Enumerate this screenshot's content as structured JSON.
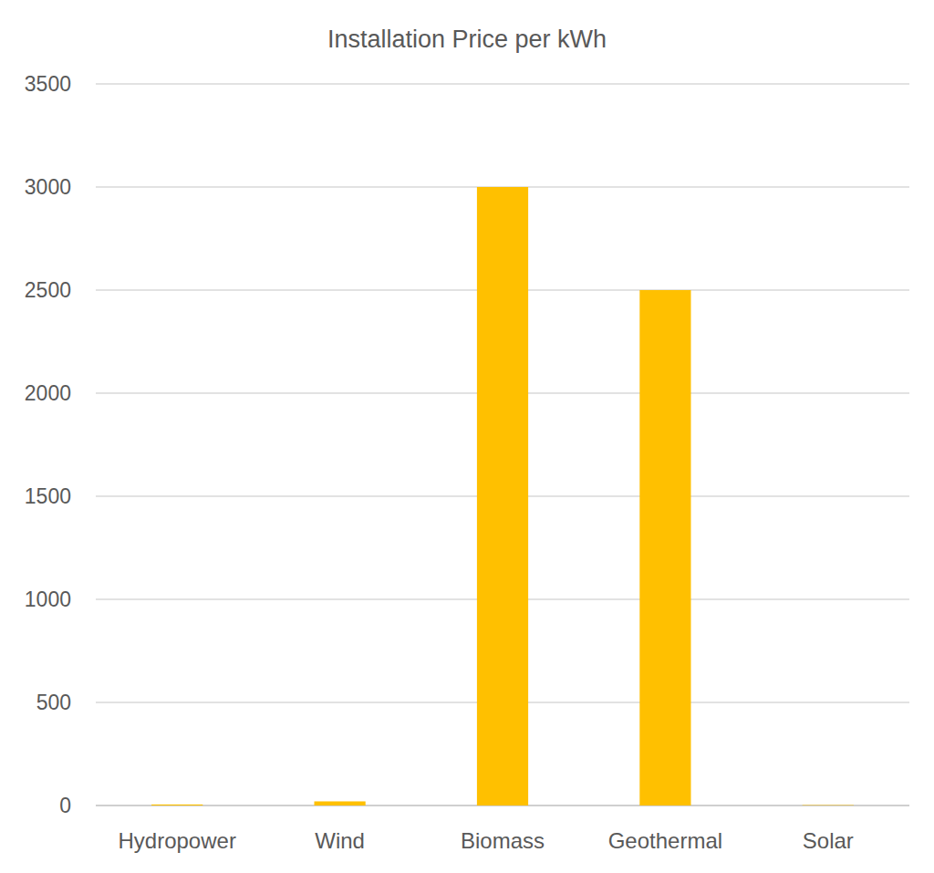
{
  "chart_data": {
    "type": "bar",
    "title": "Installation Price per kWh",
    "categories": [
      "Hydropower",
      "Wind",
      "Biomass",
      "Geothermal",
      "Solar"
    ],
    "values": [
      5,
      20,
      3000,
      2500,
      2
    ],
    "color": "#ffc000",
    "ylim": [
      0,
      3500
    ],
    "yticks": [
      0,
      500,
      1000,
      1500,
      2000,
      2500,
      3000,
      3500
    ],
    "grid": true
  }
}
